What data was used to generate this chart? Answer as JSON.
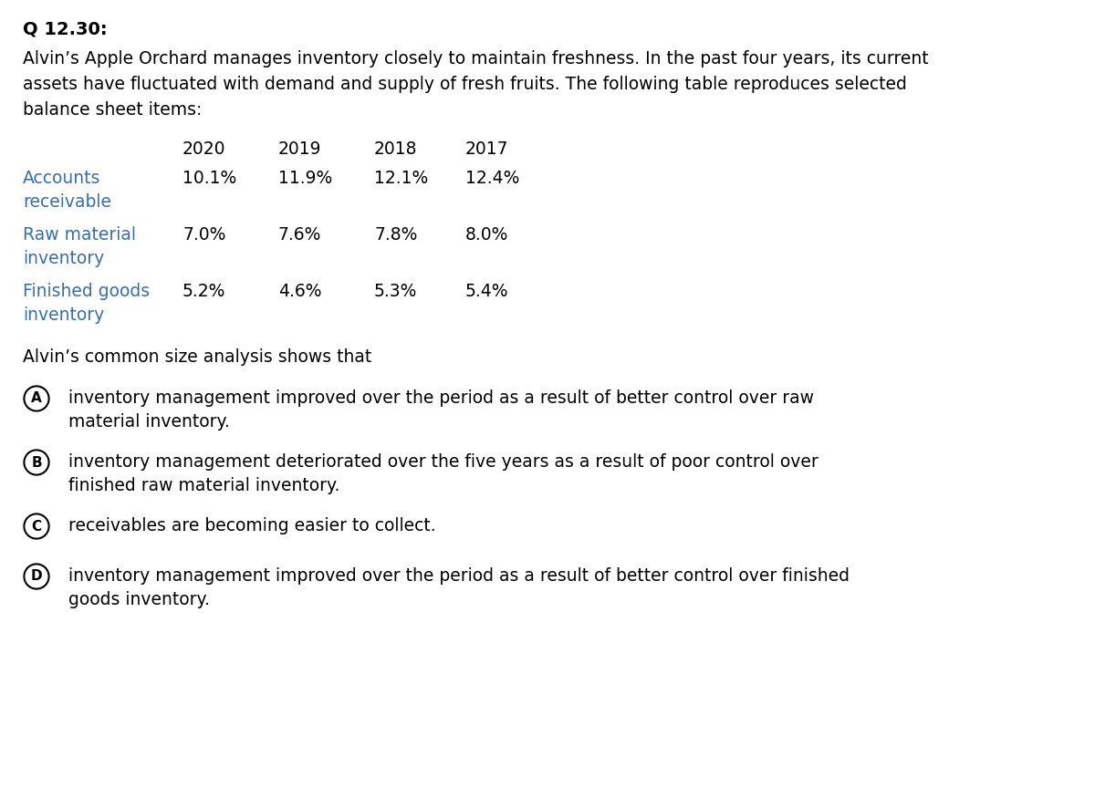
{
  "title": "Q 12.30:",
  "intro_text": "Alvin’s Apple Orchard manages inventory closely to maintain freshness. In the past four years, its current\nassets have fluctuated with demand and supply of fresh fruits. The following table reproduces selected\nbalance sheet items:",
  "table_years": [
    "2020",
    "2019",
    "2018",
    "2017"
  ],
  "table_rows": [
    {
      "label_line1": "Accounts",
      "label_line2": "receivable",
      "values": [
        "10.1%",
        "11.9%",
        "12.1%",
        "12.4%"
      ]
    },
    {
      "label_line1": "Raw material",
      "label_line2": "inventory",
      "values": [
        "7.0%",
        "7.6%",
        "7.8%",
        "8.0%"
      ]
    },
    {
      "label_line1": "Finished goods",
      "label_line2": "inventory",
      "values": [
        "5.2%",
        "4.6%",
        "5.3%",
        "5.4%"
      ]
    }
  ],
  "analysis_text": "Alvin’s common size analysis shows that",
  "options": [
    {
      "letter": "A",
      "text_line1": "inventory management improved over the period as a result of better control over raw",
      "text_line2": "material inventory."
    },
    {
      "letter": "B",
      "text_line1": "inventory management deteriorated over the five years as a result of poor control over",
      "text_line2": "finished raw material inventory."
    },
    {
      "letter": "C",
      "text_line1": "receivables are becoming easier to collect.",
      "text_line2": ""
    },
    {
      "letter": "D",
      "text_line1": "inventory management improved over the period as a result of better control over finished",
      "text_line2": "goods inventory."
    }
  ],
  "bg_color": "#ffffff",
  "text_color": "#000000",
  "table_label_color": "#3a6ea5",
  "title_fontsize": 14,
  "body_fontsize": 13.5,
  "table_fontsize": 13.5,
  "option_fontsize": 13.5
}
